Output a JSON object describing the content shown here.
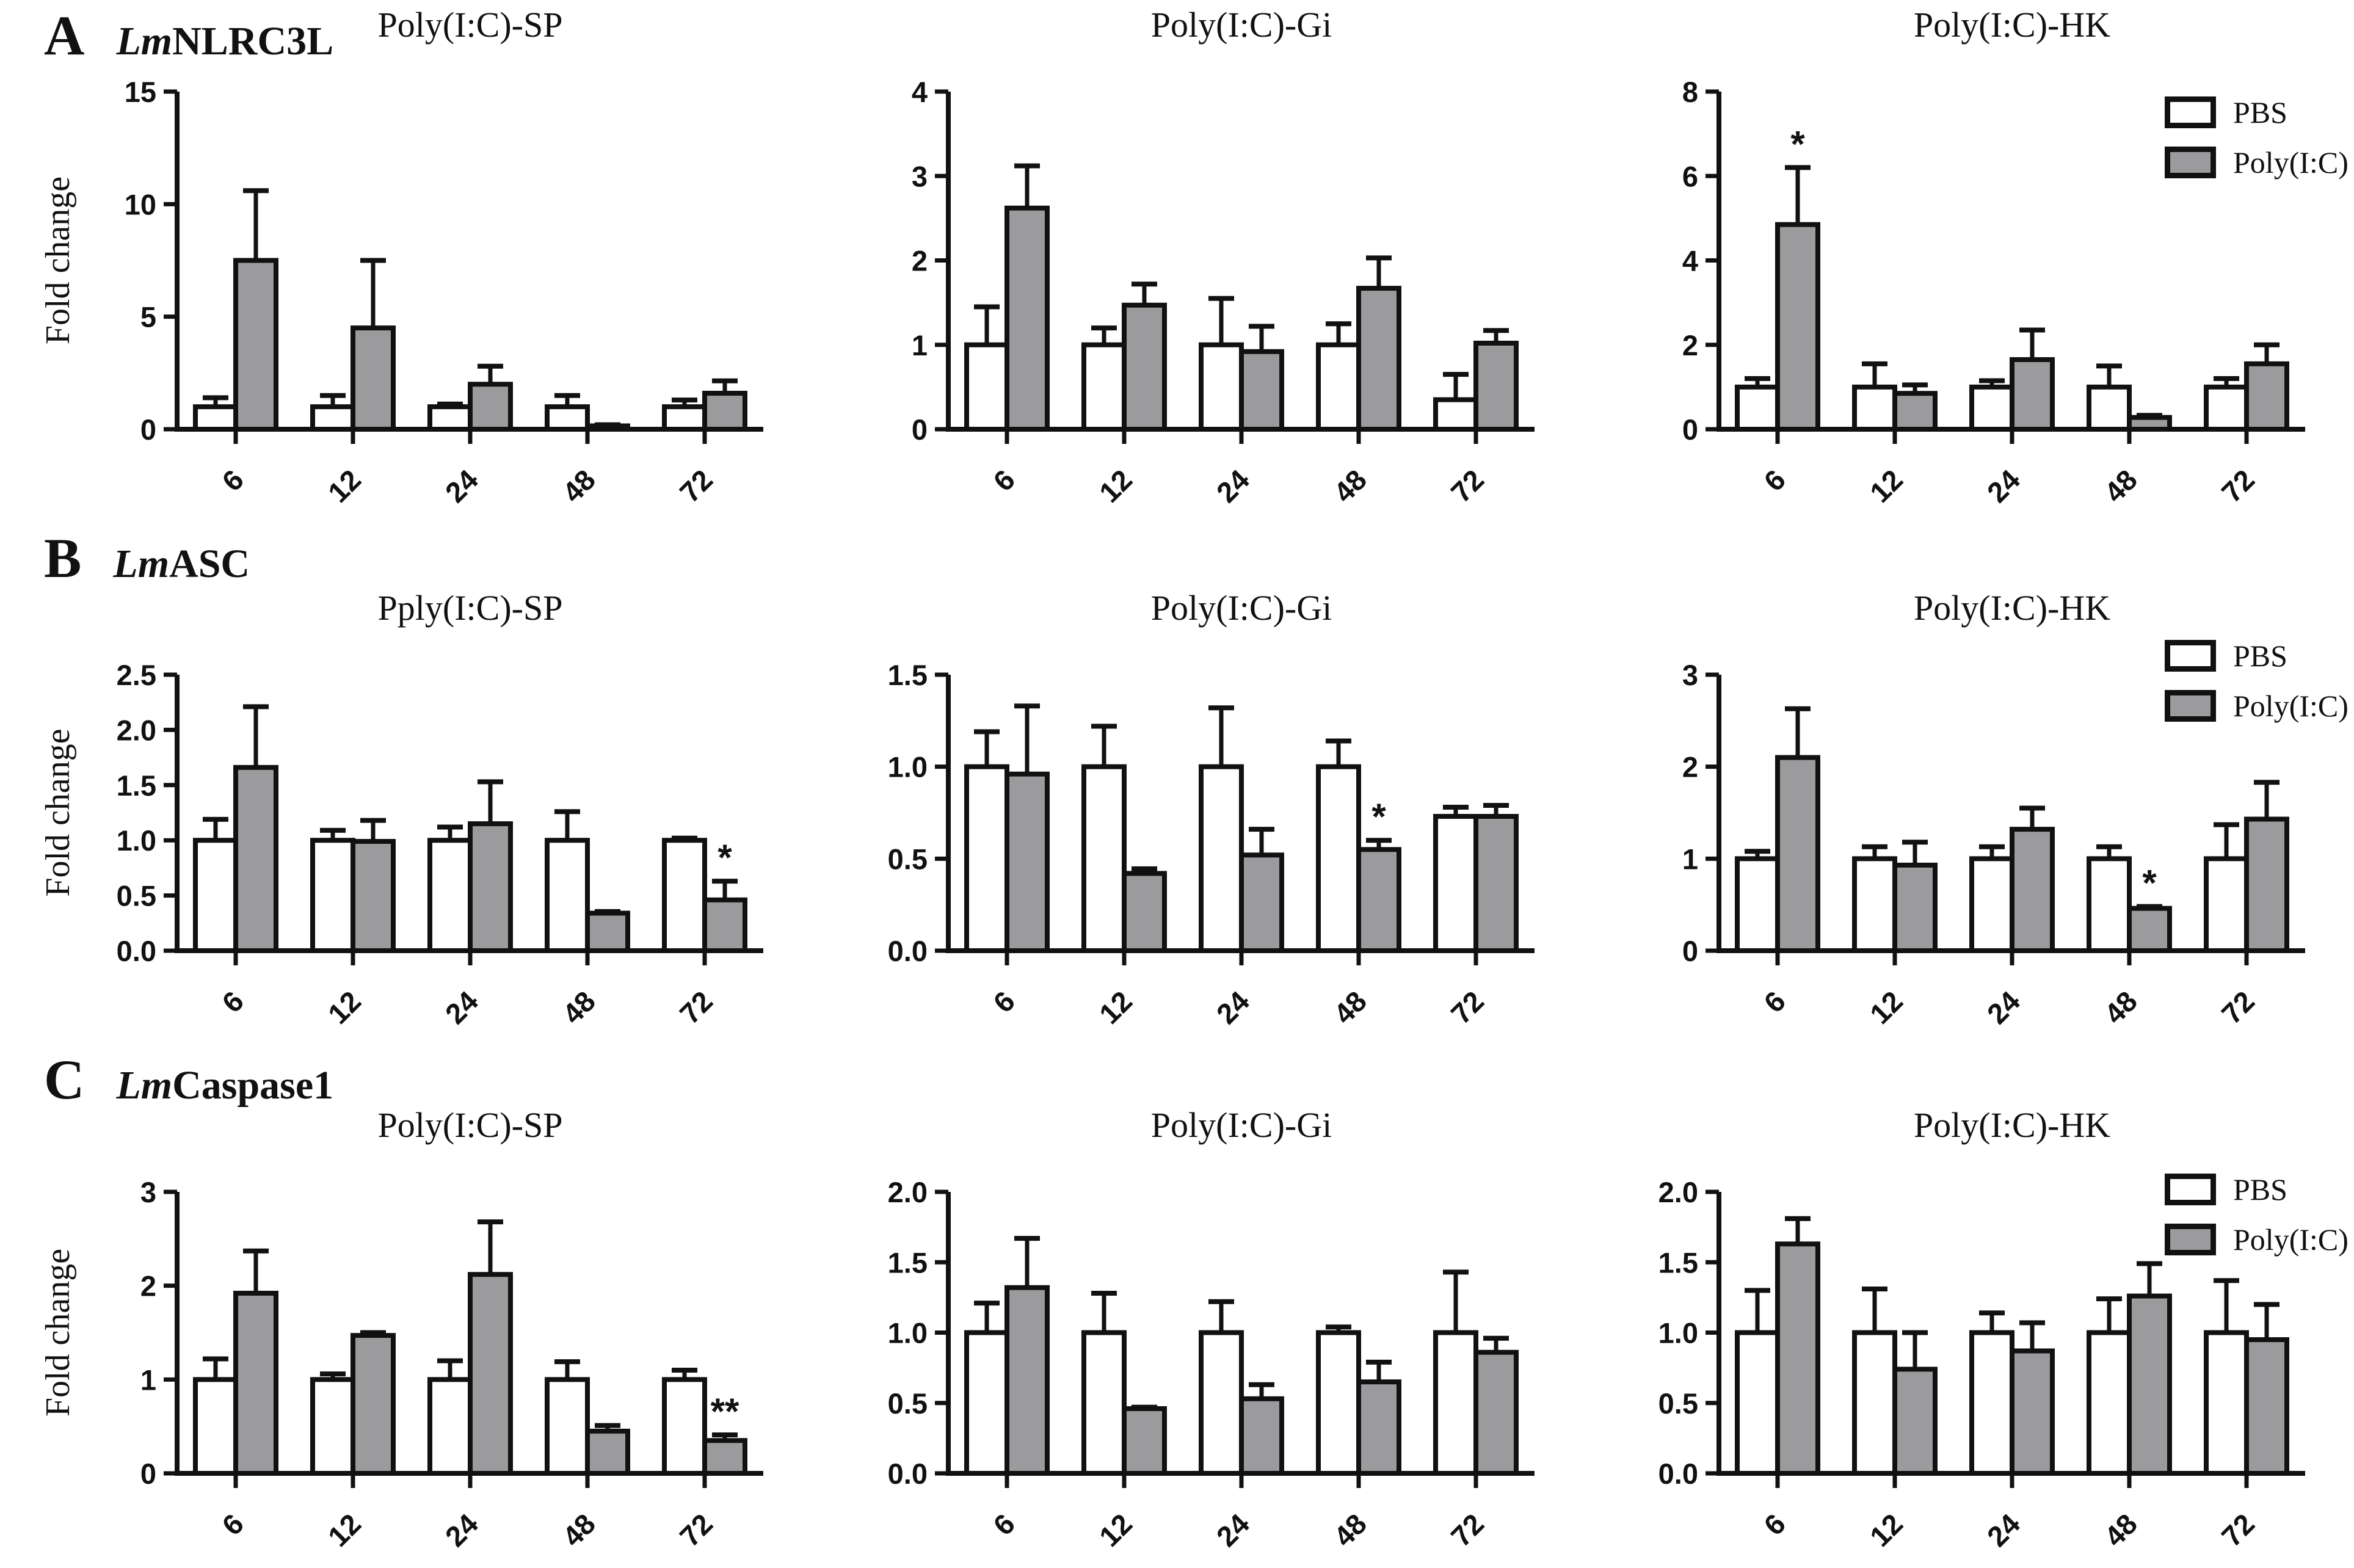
{
  "figure": {
    "ylabel": "Fold change",
    "legend": {
      "pbs": "PBS",
      "poly": "Poly(I:C)"
    },
    "colors": {
      "pbs_fill": "#ffffff",
      "poly_fill": "#9b9b9e",
      "stroke": "#111111"
    },
    "x_categories": [
      "6",
      "12",
      "24",
      "48",
      "72"
    ]
  },
  "panels": [
    {
      "letter": "A",
      "gene_prefix": "Lm",
      "gene_name": "NLRC3L"
    },
    {
      "letter": "B",
      "gene_prefix": "Lm",
      "gene_name": "ASC"
    },
    {
      "letter": "C",
      "gene_prefix": "Lm",
      "gene_name": "Caspase1"
    }
  ],
  "chart_data": [
    {
      "type": "bar",
      "panel": "A",
      "gene": "LmNLRC3L",
      "title": "Poly(I:C)-SP",
      "ylabel": "Fold change",
      "categories": [
        "6",
        "12",
        "24",
        "48",
        "72"
      ],
      "ylim": [
        0,
        15
      ],
      "yticks": [
        "0",
        "5",
        "10",
        "15"
      ],
      "series": [
        {
          "name": "PBS",
          "values": [
            1.0,
            1.0,
            1.0,
            1.0,
            1.0
          ],
          "errors": [
            0.4,
            0.5,
            0.12,
            0.5,
            0.3
          ]
        },
        {
          "name": "Poly(I:C)",
          "values": [
            7.5,
            4.5,
            2.0,
            0.15,
            1.6
          ],
          "errors": [
            3.1,
            3.0,
            0.8,
            0.05,
            0.55
          ]
        }
      ],
      "annotations": []
    },
    {
      "type": "bar",
      "panel": "A",
      "gene": "LmNLRC3L",
      "title": "Poly(I:C)-Gi",
      "categories": [
        "6",
        "12",
        "24",
        "48",
        "72"
      ],
      "ylim": [
        0,
        4
      ],
      "yticks": [
        "0",
        "1",
        "2",
        "3",
        "4"
      ],
      "series": [
        {
          "name": "PBS",
          "values": [
            1.0,
            1.0,
            1.0,
            1.0,
            0.35
          ],
          "errors": [
            0.45,
            0.2,
            0.55,
            0.25,
            0.3
          ]
        },
        {
          "name": "Poly(I:C)",
          "values": [
            2.62,
            1.47,
            0.92,
            1.67,
            1.02
          ],
          "errors": [
            0.5,
            0.25,
            0.3,
            0.36,
            0.15
          ]
        }
      ],
      "annotations": []
    },
    {
      "type": "bar",
      "panel": "A",
      "gene": "LmNLRC3L",
      "title": "Poly(I:C)-HK",
      "categories": [
        "6",
        "12",
        "24",
        "48",
        "72"
      ],
      "ylim": [
        0,
        8
      ],
      "yticks": [
        "0",
        "2",
        "4",
        "6",
        "8"
      ],
      "series": [
        {
          "name": "PBS",
          "values": [
            1.0,
            1.0,
            1.0,
            1.0,
            1.0
          ],
          "errors": [
            0.2,
            0.55,
            0.15,
            0.5,
            0.2
          ]
        },
        {
          "name": "Poly(I:C)",
          "values": [
            4.85,
            0.85,
            1.65,
            0.28,
            1.55
          ],
          "errors": [
            1.35,
            0.2,
            0.7,
            0.05,
            0.45
          ]
        }
      ],
      "annotations": [
        {
          "cat": 0,
          "series": 1,
          "text": "*"
        }
      ]
    },
    {
      "type": "bar",
      "panel": "B",
      "gene": "LmASC",
      "title": "Pply(I:C)-SP",
      "ylabel": "Fold change",
      "categories": [
        "6",
        "12",
        "24",
        "48",
        "72"
      ],
      "ylim": [
        0,
        2.5
      ],
      "yticks": [
        "0.0",
        "0.5",
        "1.0",
        "1.5",
        "2.0",
        "2.5"
      ],
      "series": [
        {
          "name": "PBS",
          "values": [
            1.0,
            1.0,
            1.0,
            1.0,
            1.0
          ],
          "errors": [
            0.19,
            0.09,
            0.12,
            0.26,
            0.02
          ]
        },
        {
          "name": "Poly(I:C)",
          "values": [
            1.66,
            0.99,
            1.15,
            0.34,
            0.46
          ],
          "errors": [
            0.55,
            0.19,
            0.38,
            0.015,
            0.17
          ]
        }
      ],
      "annotations": [
        {
          "cat": 4,
          "series": 1,
          "text": "*"
        }
      ]
    },
    {
      "type": "bar",
      "panel": "B",
      "gene": "LmASC",
      "title": "Poly(I:C)-Gi",
      "categories": [
        "6",
        "12",
        "24",
        "48",
        "72"
      ],
      "ylim": [
        0,
        1.5
      ],
      "yticks": [
        "0.0",
        "0.5",
        "1.0",
        "1.5"
      ],
      "series": [
        {
          "name": "PBS",
          "values": [
            1.0,
            1.0,
            1.0,
            1.0,
            0.73
          ],
          "errors": [
            0.19,
            0.22,
            0.32,
            0.14,
            0.05
          ]
        },
        {
          "name": "Poly(I:C)",
          "values": [
            0.96,
            0.42,
            0.52,
            0.55,
            0.73
          ],
          "errors": [
            0.37,
            0.025,
            0.14,
            0.05,
            0.06
          ]
        }
      ],
      "annotations": [
        {
          "cat": 3,
          "series": 1,
          "text": "*"
        }
      ]
    },
    {
      "type": "bar",
      "panel": "B",
      "gene": "LmASC",
      "title": "Poly(I:C)-HK",
      "categories": [
        "6",
        "12",
        "24",
        "48",
        "72"
      ],
      "ylim": [
        0,
        3
      ],
      "yticks": [
        "0",
        "1",
        "2",
        "3"
      ],
      "series": [
        {
          "name": "PBS",
          "values": [
            1.0,
            1.0,
            1.0,
            1.0,
            1.0
          ],
          "errors": [
            0.08,
            0.13,
            0.13,
            0.13,
            0.37
          ]
        },
        {
          "name": "Poly(I:C)",
          "values": [
            2.1,
            0.93,
            1.32,
            0.46,
            1.43
          ],
          "errors": [
            0.53,
            0.25,
            0.23,
            0.02,
            0.4
          ]
        }
      ],
      "annotations": [
        {
          "cat": 3,
          "series": 1,
          "text": "*"
        }
      ]
    },
    {
      "type": "bar",
      "panel": "C",
      "gene": "LmCaspase1",
      "title": "Poly(I:C)-SP",
      "ylabel": "Fold change",
      "categories": [
        "6",
        "12",
        "24",
        "48",
        "72"
      ],
      "ylim": [
        0,
        3
      ],
      "yticks": [
        "0",
        "1",
        "2",
        "3"
      ],
      "series": [
        {
          "name": "PBS",
          "values": [
            1.0,
            1.0,
            1.0,
            1.0,
            1.0
          ],
          "errors": [
            0.22,
            0.06,
            0.2,
            0.19,
            0.1
          ]
        },
        {
          "name": "Poly(I:C)",
          "values": [
            1.92,
            1.47,
            2.12,
            0.45,
            0.35
          ],
          "errors": [
            0.45,
            0.03,
            0.56,
            0.06,
            0.06
          ]
        }
      ],
      "annotations": [
        {
          "cat": 4,
          "series": 1,
          "text": "**"
        }
      ]
    },
    {
      "type": "bar",
      "panel": "C",
      "gene": "LmCaspase1",
      "title": "Poly(I:C)-Gi",
      "categories": [
        "6",
        "12",
        "24",
        "48",
        "72"
      ],
      "ylim": [
        0,
        2
      ],
      "yticks": [
        "0.0",
        "0.5",
        "1.0",
        "1.5",
        "2.0"
      ],
      "series": [
        {
          "name": "PBS",
          "values": [
            1.0,
            1.0,
            1.0,
            1.0,
            1.0
          ],
          "errors": [
            0.21,
            0.28,
            0.22,
            0.04,
            0.43
          ]
        },
        {
          "name": "Poly(I:C)",
          "values": [
            1.32,
            0.46,
            0.53,
            0.65,
            0.86
          ],
          "errors": [
            0.35,
            0.01,
            0.1,
            0.14,
            0.1
          ]
        }
      ],
      "annotations": []
    },
    {
      "type": "bar",
      "panel": "C",
      "gene": "LmCaspase1",
      "title": "Poly(I:C)-HK",
      "categories": [
        "6",
        "12",
        "24",
        "48",
        "72"
      ],
      "ylim": [
        0,
        2
      ],
      "yticks": [
        "0.0",
        "0.5",
        "1.0",
        "1.5",
        "2.0"
      ],
      "series": [
        {
          "name": "PBS",
          "values": [
            1.0,
            1.0,
            1.0,
            1.0,
            1.0
          ],
          "errors": [
            0.3,
            0.31,
            0.14,
            0.24,
            0.37
          ]
        },
        {
          "name": "Poly(I:C)",
          "values": [
            1.63,
            0.74,
            0.87,
            1.26,
            0.95
          ],
          "errors": [
            0.18,
            0.26,
            0.2,
            0.23,
            0.25
          ]
        }
      ],
      "annotations": []
    }
  ]
}
